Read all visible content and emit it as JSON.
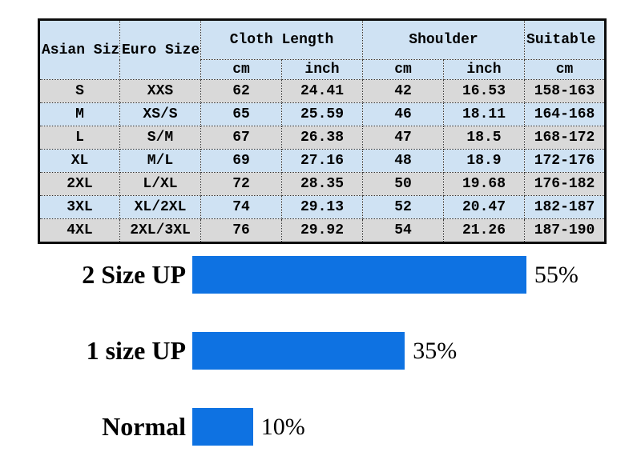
{
  "table": {
    "headers": {
      "asian_size": "Asian Size",
      "euro_size": "Euro Size",
      "cloth_length": "Cloth Length",
      "shoulder": "Shoulder",
      "suitable_height": "Suitable Height",
      "cloth_cm": "cm",
      "cloth_inch": "inch",
      "shoulder_cm": "cm",
      "shoulder_inch": "inch",
      "height_cm": "cm"
    },
    "rows": [
      [
        "S",
        "XXS",
        "62",
        "24.41",
        "42",
        "16.53",
        "158-163"
      ],
      [
        "M",
        "XS/S",
        "65",
        "25.59",
        "46",
        "18.11",
        "164-168"
      ],
      [
        "L",
        "S/M",
        "67",
        "26.38",
        "47",
        "18.5",
        "168-172"
      ],
      [
        "XL",
        "M/L",
        "69",
        "27.16",
        "48",
        "18.9",
        "172-176"
      ],
      [
        "2XL",
        "L/XL",
        "72",
        "28.35",
        "50",
        "19.68",
        "176-182"
      ],
      [
        "3XL",
        "XL/2XL",
        "74",
        "29.13",
        "52",
        "20.47",
        "182-187"
      ],
      [
        "4XL",
        "2XL/3XL",
        "76",
        "29.92",
        "54",
        "21.26",
        "187-190"
      ]
    ]
  },
  "chart_data": {
    "type": "bar",
    "orientation": "horizontal",
    "categories": [
      "2 Size UP",
      "1 size UP",
      "Normal"
    ],
    "values": [
      55,
      35,
      10
    ],
    "value_labels": [
      "55%",
      "35%",
      "10%"
    ],
    "xlim": [
      0,
      100
    ],
    "grid": false,
    "legend": "none",
    "bar_color": "#0e72e2"
  },
  "colors": {
    "table_header_blue": "#cfe2f3",
    "table_row_gray": "#d9d9d9",
    "table_border": "#0d0d0d",
    "bar_blue": "#0e72e2",
    "text": "#000000"
  }
}
